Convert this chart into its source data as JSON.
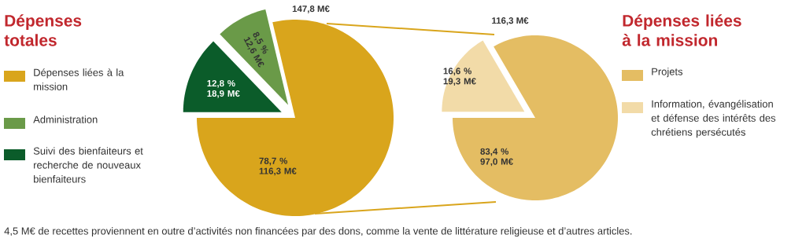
{
  "chart_data": [
    {
      "type": "pie",
      "title": "Dépenses totales",
      "categories": [
        "Dépenses liées à la mission",
        "Administration",
        "Suivi des bienfaiteurs et recherche de nouveaux bienfaiteurs"
      ],
      "values": [
        78.7,
        8.5,
        12.8
      ],
      "colors": [
        "#d9a51c",
        "#6a9a48",
        "#0b5c2a"
      ],
      "value_labels": [
        "78,7 % 116,3 M€",
        "8,5 % 12,6 M€",
        "12,8 % 18,9 M€"
      ],
      "annotations": [
        "147,8 M€",
        "4,5 M€ de recettes proviennent en outre d’activités non financées par des dons, comme la vente de littérature religieuse et d’autres articles."
      ],
      "legend": "left"
    },
    {
      "type": "pie",
      "title": "Dépenses liées à la mission",
      "categories": [
        "Projets",
        "Information, évangélisation et défense des intérêts des chrétiens persécutés"
      ],
      "values": [
        83.4,
        16.6
      ],
      "colors": [
        "#e4bd63",
        "#f2dba8"
      ],
      "value_labels": [
        "83,4 % 97,0 M€",
        "16,6 % 19,3 M€"
      ],
      "annotations": [
        "116,3 M€"
      ],
      "legend": "right"
    }
  ]
}
